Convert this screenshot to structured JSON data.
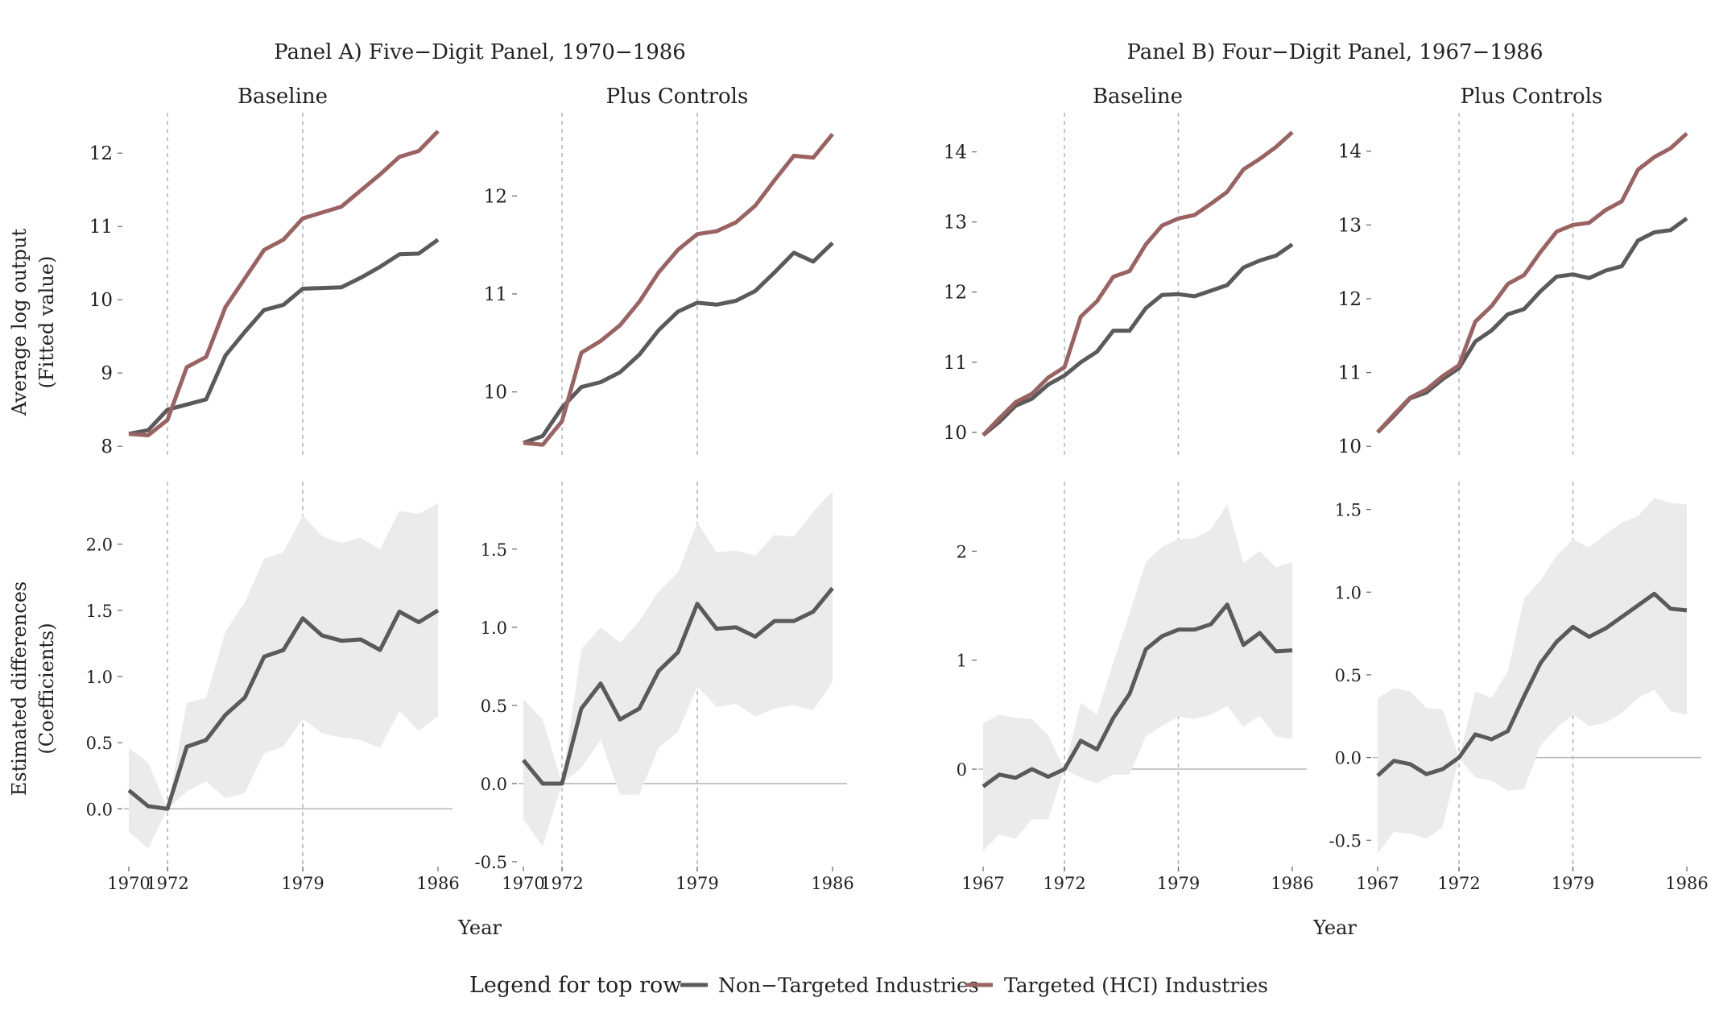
{
  "figure": {
    "x_axis_label": "Year",
    "y_label_top": [
      "Average log output",
      "(Fitted value)"
    ],
    "y_label_bottom": [
      "Estimated differences",
      "(Coefficients)"
    ]
  },
  "legend": {
    "title": "Legend for top row",
    "items": [
      {
        "label": "Non−Targeted Industries",
        "color": "#5a5a5a"
      },
      {
        "label": "Targeted (HCI) Industries",
        "color": "#9b6262"
      }
    ]
  },
  "colors": {
    "non_targeted": "#5a5a5a",
    "targeted": "#9b6262",
    "coef_line": "#5a5a5a",
    "ci_band": "#ebebeb",
    "ref_line": "#b8b8b8"
  },
  "panels": [
    {
      "title": "Panel A) Five−Digit Panel, 1970−1986",
      "columns": [
        0,
        1
      ]
    },
    {
      "title": "Panel B) Four−Digit Panel, 1967−1986",
      "columns": [
        2,
        3
      ]
    }
  ],
  "chart_data": [
    {
      "type": "line",
      "id": "A-baseline-top",
      "panel": "A",
      "column": 0,
      "row": "top",
      "subtitle": "Baseline",
      "x": [
        1970,
        1971,
        1972,
        1973,
        1974,
        1975,
        1976,
        1977,
        1978,
        1979,
        1980,
        1981,
        1982,
        1983,
        1984,
        1985,
        1986
      ],
      "series": [
        {
          "name": "Non−Targeted Industries",
          "values": [
            8.17,
            8.22,
            8.5,
            8.57,
            8.64,
            9.24,
            9.56,
            9.86,
            9.93,
            10.15,
            10.16,
            10.17,
            10.3,
            10.45,
            10.62,
            10.63,
            10.82
          ]
        },
        {
          "name": "Targeted (HCI) Industries",
          "values": [
            8.17,
            8.15,
            8.36,
            9.08,
            9.22,
            9.9,
            10.29,
            10.68,
            10.82,
            11.11,
            11.19,
            11.27,
            11.49,
            11.71,
            11.95,
            12.03,
            12.3
          ]
        }
      ],
      "xlim": [
        1970,
        1986
      ],
      "ylim": [
        7.98,
        12.42
      ],
      "xticks": [
        1970,
        1972,
        1979,
        1986
      ],
      "yticks": [
        8,
        9,
        10,
        11,
        12
      ],
      "vlines": [
        1972,
        1979
      ]
    },
    {
      "type": "line",
      "id": "A-controls-top",
      "panel": "A",
      "column": 1,
      "row": "top",
      "subtitle": "Plus Controls",
      "x": [
        1970,
        1971,
        1972,
        1973,
        1974,
        1975,
        1976,
        1977,
        1978,
        1979,
        1980,
        1981,
        1982,
        1983,
        1984,
        1985,
        1986
      ],
      "series": [
        {
          "name": "Non−Targeted Industries",
          "values": [
            9.48,
            9.55,
            9.84,
            10.05,
            10.1,
            10.2,
            10.38,
            10.63,
            10.82,
            10.91,
            10.89,
            10.93,
            11.03,
            11.22,
            11.42,
            11.33,
            11.52
          ]
        },
        {
          "name": "Targeted (HCI) Industries",
          "values": [
            9.48,
            9.46,
            9.7,
            10.4,
            10.52,
            10.68,
            10.92,
            11.22,
            11.45,
            11.61,
            11.64,
            11.73,
            11.9,
            12.16,
            12.41,
            12.39,
            12.63
          ]
        }
      ],
      "xlim": [
        1970,
        1986
      ],
      "ylim": [
        9.43,
        12.75
      ],
      "xticks": [
        1970,
        1972,
        1979,
        1986
      ],
      "yticks": [
        10,
        11,
        12
      ],
      "vlines": [
        1972,
        1979
      ]
    },
    {
      "type": "line",
      "id": "B-baseline-top",
      "panel": "B",
      "column": 2,
      "row": "top",
      "subtitle": "Baseline",
      "x": [
        1967,
        1968,
        1969,
        1970,
        1971,
        1972,
        1973,
        1974,
        1975,
        1976,
        1977,
        1978,
        1979,
        1980,
        1981,
        1982,
        1983,
        1984,
        1985,
        1986
      ],
      "series": [
        {
          "name": "Non−Targeted Industries",
          "values": [
            9.96,
            10.15,
            10.38,
            10.48,
            10.68,
            10.81,
            11.0,
            11.15,
            11.45,
            11.45,
            11.77,
            11.96,
            11.97,
            11.94,
            12.02,
            12.1,
            12.35,
            12.45,
            12.52,
            12.68
          ]
        },
        {
          "name": "Targeted (HCI) Industries",
          "values": [
            9.96,
            10.2,
            10.43,
            10.55,
            10.78,
            10.93,
            11.65,
            11.87,
            12.22,
            12.3,
            12.68,
            12.95,
            13.05,
            13.1,
            13.26,
            13.43,
            13.75,
            13.9,
            14.07,
            14.28
          ]
        }
      ],
      "xlim": [
        1967,
        1986
      ],
      "ylim": [
        9.78,
        14.42
      ],
      "xticks": [
        1967,
        1972,
        1979,
        1986
      ],
      "yticks": [
        10,
        11,
        12,
        13,
        14
      ],
      "vlines": [
        1972,
        1979
      ]
    },
    {
      "type": "line",
      "id": "B-controls-top",
      "panel": "B",
      "column": 3,
      "row": "top",
      "subtitle": "Plus Controls",
      "x": [
        1967,
        1968,
        1969,
        1970,
        1971,
        1972,
        1973,
        1974,
        1975,
        1976,
        1977,
        1978,
        1979,
        1980,
        1981,
        1982,
        1983,
        1984,
        1985,
        1986
      ],
      "series": [
        {
          "name": "Non−Targeted Industries",
          "values": [
            10.19,
            10.41,
            10.65,
            10.73,
            10.91,
            11.06,
            11.42,
            11.57,
            11.79,
            11.86,
            12.1,
            12.3,
            12.33,
            12.28,
            12.38,
            12.44,
            12.79,
            12.9,
            12.93,
            13.09
          ]
        },
        {
          "name": "Targeted (HCI) Industries",
          "values": [
            10.19,
            10.43,
            10.66,
            10.77,
            10.95,
            11.1,
            11.69,
            11.9,
            12.2,
            12.32,
            12.63,
            12.91,
            13.0,
            13.03,
            13.2,
            13.32,
            13.75,
            13.92,
            14.04,
            14.24
          ]
        }
      ],
      "xlim": [
        1967,
        1986
      ],
      "ylim": [
        9.98,
        14.39
      ],
      "xticks": [
        1967,
        1972,
        1979,
        1986
      ],
      "yticks": [
        10,
        11,
        12,
        13,
        14
      ],
      "vlines": [
        1972,
        1979
      ]
    },
    {
      "type": "area",
      "id": "A-baseline-bottom",
      "panel": "A",
      "column": 0,
      "row": "bottom",
      "x": [
        1970,
        1971,
        1972,
        1973,
        1974,
        1975,
        1976,
        1977,
        1978,
        1979,
        1980,
        1981,
        1982,
        1983,
        1984,
        1985,
        1986
      ],
      "series": [
        {
          "values": [
            0.14,
            0.02,
            0.0,
            0.47,
            0.52,
            0.71,
            0.84,
            1.15,
            1.2,
            1.44,
            1.31,
            1.27,
            1.28,
            1.2,
            1.49,
            1.41,
            1.5
          ]
        }
      ],
      "ci_upper": [
        0.46,
        0.35,
        0.0,
        0.8,
        0.84,
        1.34,
        1.56,
        1.89,
        1.94,
        2.22,
        2.06,
        2.01,
        2.05,
        1.96,
        2.25,
        2.23,
        2.31
      ],
      "ci_lower": [
        -0.17,
        -0.3,
        0.0,
        0.13,
        0.21,
        0.08,
        0.12,
        0.42,
        0.47,
        0.68,
        0.57,
        0.54,
        0.52,
        0.46,
        0.74,
        0.59,
        0.7
      ],
      "xlim": [
        1970,
        1986
      ],
      "ylim": [
        -0.4,
        2.4
      ],
      "xticks": [
        1970,
        1972,
        1979,
        1986
      ],
      "yticks": [
        0.0,
        0.5,
        1.0,
        1.5,
        2.0
      ],
      "vlines": [
        1972,
        1979
      ],
      "hline": 0
    },
    {
      "type": "area",
      "id": "A-controls-bottom",
      "panel": "A",
      "column": 1,
      "row": "bottom",
      "x": [
        1970,
        1971,
        1972,
        1973,
        1974,
        1975,
        1976,
        1977,
        1978,
        1979,
        1980,
        1981,
        1982,
        1983,
        1984,
        1985,
        1986
      ],
      "series": [
        {
          "values": [
            0.15,
            0.0,
            0.0,
            0.48,
            0.64,
            0.41,
            0.48,
            0.72,
            0.84,
            1.15,
            0.99,
            1.0,
            0.94,
            1.04,
            1.04,
            1.1,
            1.25
          ]
        }
      ],
      "ci_upper": [
        0.54,
        0.41,
        0.0,
        0.86,
        1.0,
        0.9,
        1.04,
        1.23,
        1.35,
        1.67,
        1.48,
        1.49,
        1.46,
        1.59,
        1.58,
        1.74,
        1.87
      ],
      "ci_lower": [
        -0.23,
        -0.4,
        0.0,
        0.1,
        0.28,
        -0.07,
        -0.07,
        0.23,
        0.33,
        0.62,
        0.49,
        0.51,
        0.43,
        0.48,
        0.5,
        0.47,
        0.65
      ],
      "xlim": [
        1970,
        1986
      ],
      "ylim": [
        -0.5,
        1.87
      ],
      "xticks": [
        1970,
        1972,
        1979,
        1986
      ],
      "yticks": [
        -0.5,
        0.0,
        0.5,
        1.0,
        1.5
      ],
      "vlines": [
        1972,
        1979
      ],
      "hline": 0
    },
    {
      "type": "area",
      "id": "B-baseline-bottom",
      "panel": "B",
      "column": 2,
      "row": "bottom",
      "x": [
        1967,
        1968,
        1969,
        1970,
        1971,
        1972,
        1973,
        1974,
        1975,
        1976,
        1977,
        1978,
        1979,
        1980,
        1981,
        1982,
        1983,
        1984,
        1985,
        1986
      ],
      "series": [
        {
          "values": [
            -0.16,
            -0.05,
            -0.08,
            0.0,
            -0.07,
            0.0,
            0.26,
            0.18,
            0.47,
            0.69,
            1.1,
            1.22,
            1.28,
            1.28,
            1.33,
            1.51,
            1.14,
            1.25,
            1.08,
            1.09
          ]
        }
      ],
      "ci_upper": [
        0.42,
        0.5,
        0.47,
        0.46,
        0.31,
        0.0,
        0.61,
        0.5,
        0.98,
        1.43,
        1.9,
        2.04,
        2.11,
        2.12,
        2.2,
        2.43,
        1.89,
        2.0,
        1.85,
        1.9
      ],
      "ci_lower": [
        -0.75,
        -0.6,
        -0.64,
        -0.46,
        -0.46,
        0.0,
        -0.08,
        -0.13,
        -0.05,
        -0.05,
        0.3,
        0.4,
        0.48,
        0.46,
        0.5,
        0.58,
        0.39,
        0.49,
        0.3,
        0.28
      ],
      "xlim": [
        1967,
        1986
      ],
      "ylim": [
        -0.85,
        2.55
      ],
      "xticks": [
        1967,
        1972,
        1979,
        1986
      ],
      "yticks": [
        0,
        1,
        2
      ],
      "vlines": [
        1972,
        1979
      ],
      "hline": 0
    },
    {
      "type": "area",
      "id": "B-controls-bottom",
      "panel": "B",
      "column": 3,
      "row": "bottom",
      "x": [
        1967,
        1968,
        1969,
        1970,
        1971,
        1972,
        1973,
        1974,
        1975,
        1976,
        1977,
        1978,
        1979,
        1980,
        1981,
        1982,
        1983,
        1984,
        1985,
        1986
      ],
      "series": [
        {
          "values": [
            -0.11,
            -0.02,
            -0.04,
            -0.1,
            -0.07,
            0.0,
            0.14,
            0.11,
            0.16,
            0.37,
            0.57,
            0.7,
            0.79,
            0.73,
            0.78,
            0.85,
            0.92,
            0.99,
            0.9,
            0.89
          ]
        }
      ],
      "ci_upper": [
        0.36,
        0.42,
        0.4,
        0.3,
        0.29,
        0.0,
        0.4,
        0.36,
        0.52,
        0.96,
        1.07,
        1.22,
        1.32,
        1.27,
        1.35,
        1.42,
        1.46,
        1.57,
        1.54,
        1.53
      ],
      "ci_lower": [
        -0.58,
        -0.45,
        -0.46,
        -0.49,
        -0.42,
        0.0,
        -0.12,
        -0.14,
        -0.2,
        -0.19,
        0.07,
        0.18,
        0.26,
        0.19,
        0.21,
        0.27,
        0.36,
        0.41,
        0.28,
        0.26
      ],
      "xlim": [
        1967,
        1986
      ],
      "ylim": [
        -0.63,
        1.61
      ],
      "xticks": [
        1967,
        1972,
        1979,
        1986
      ],
      "yticks": [
        -0.5,
        0.0,
        0.5,
        1.0,
        1.5
      ],
      "vlines": [
        1972,
        1979
      ],
      "hline": 0
    }
  ]
}
